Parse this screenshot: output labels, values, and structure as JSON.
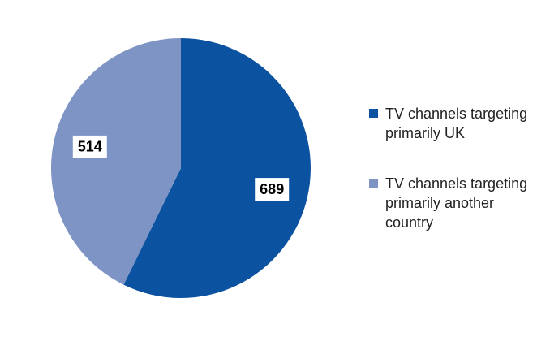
{
  "chart_data": {
    "type": "pie",
    "categories": [
      "TV channels targeting primarily UK",
      "TV channels targeting primarily another country"
    ],
    "values": [
      689,
      514
    ],
    "colors": [
      "#0b52a0",
      "#7d94c4"
    ],
    "legend": "right"
  }
}
